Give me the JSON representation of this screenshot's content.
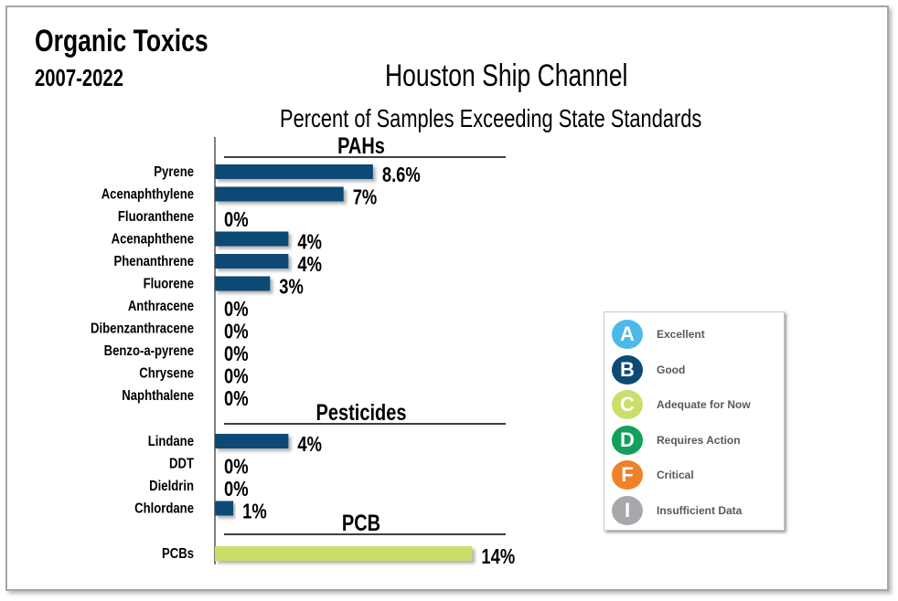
{
  "header": {
    "title": "Organic Toxics",
    "years": "2007-2022",
    "chart_title": "Houston Ship Channel",
    "subtitle": "Percent of Samples Exceeding State Standards"
  },
  "chart_data": {
    "type": "bar",
    "orientation": "horizontal",
    "title": "Houston Ship Channel",
    "subtitle": "Percent of Samples Exceeding State Standards",
    "xlim": [
      0,
      14
    ],
    "grid": false,
    "groups": [
      {
        "name": "PAHs",
        "categories": [
          "Pyrene",
          "Acenaphthylene",
          "Fluoranthene",
          "Acenaphthene",
          "Phenanthrene",
          "Fluorene",
          "Anthracene",
          "Dibenzanthracene",
          "Benzo-a-pyrene",
          "Chrysene",
          "Naphthalene"
        ],
        "values": [
          8.6,
          7,
          0,
          4,
          4,
          3,
          0,
          0,
          0,
          0,
          0
        ],
        "labels": [
          "8.6%",
          "7%",
          "0%",
          "4%",
          "4%",
          "3%",
          "0%",
          "0%",
          "0%",
          "0%",
          "0%"
        ],
        "color": "#0b4a75"
      },
      {
        "name": "Pesticides",
        "categories": [
          "Lindane",
          "DDT",
          "Dieldrin",
          "Chlordane"
        ],
        "values": [
          4,
          0,
          0,
          1
        ],
        "labels": [
          "4%",
          "0%",
          "0%",
          "1%"
        ],
        "color": "#0b4a75"
      },
      {
        "name": "PCB",
        "categories": [
          "PCBs"
        ],
        "values": [
          14
        ],
        "labels": [
          "14%"
        ],
        "color": "#c9df6a"
      }
    ]
  },
  "legend": {
    "items": [
      {
        "letter": "A",
        "label": "Excellent",
        "color": "#4db8ea"
      },
      {
        "letter": "B",
        "label": "Good",
        "color": "#0b4a75"
      },
      {
        "letter": "C",
        "label": "Adequate for Now",
        "color": "#c9df6a"
      },
      {
        "letter": "D",
        "label": "Requires Action",
        "color": "#12a05c"
      },
      {
        "letter": "F",
        "label": "Critical",
        "color": "#ef8128"
      },
      {
        "letter": "I",
        "label": "Insufficient Data",
        "color": "#a6a8ab"
      }
    ]
  }
}
